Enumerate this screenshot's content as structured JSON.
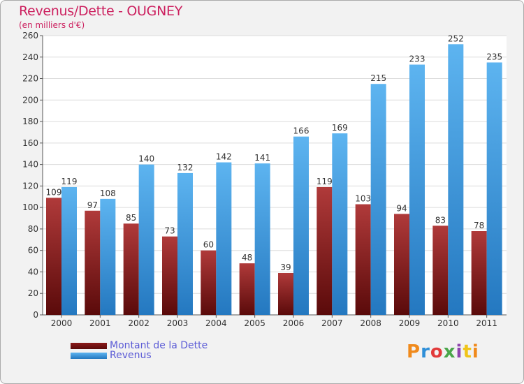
{
  "chart_data": {
    "type": "bar",
    "title": "Revenus/Dette - OUGNEY",
    "subtitle": "(en milliers d'€)",
    "categories": [
      "2000",
      "2001",
      "2002",
      "2003",
      "2004",
      "2005",
      "2006",
      "2007",
      "2008",
      "2009",
      "2010",
      "2011"
    ],
    "series": [
      {
        "name": "Montant de la Dette",
        "color": "#8b1a1a",
        "values": [
          109,
          97,
          85,
          73,
          60,
          48,
          39,
          119,
          103,
          94,
          83,
          78
        ]
      },
      {
        "name": "Revenus",
        "color": "#3a9be0",
        "values": [
          119,
          108,
          140,
          132,
          142,
          141,
          166,
          169,
          215,
          233,
          252,
          235
        ]
      }
    ],
    "ylim": [
      0,
      260
    ],
    "yticks": [
      0,
      20,
      40,
      60,
      80,
      100,
      120,
      140,
      160,
      180,
      200,
      220,
      240,
      260
    ],
    "xlabel": "",
    "ylabel": "",
    "grid": true,
    "legend_position": "bottom-left"
  },
  "legend": {
    "debt_label": "Montant de la Dette",
    "revenue_label": "Revenus"
  },
  "brand": {
    "logo_text": "Proxiti"
  }
}
